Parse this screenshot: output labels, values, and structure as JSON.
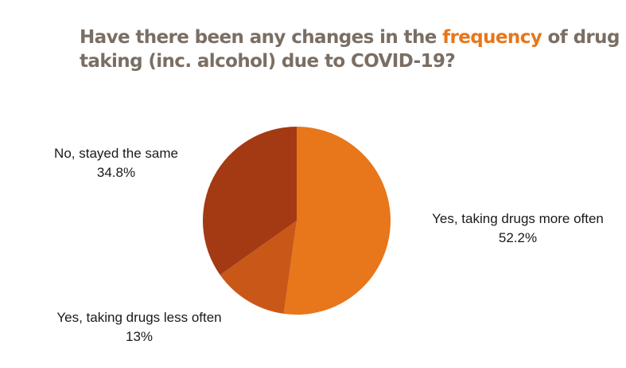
{
  "title": {
    "before": "Have there been any changes in the ",
    "highlight": "frequency",
    "after": " of drug taking (inc. alcohol) due to COVID-19?"
  },
  "colors": {
    "title": "#7a6e64",
    "highlight": "#e8761a"
  },
  "chart_data": {
    "type": "pie",
    "slices": [
      {
        "label": "Yes, taking drugs more often",
        "value": 52.2,
        "value_label": "52.2%",
        "color": "#e8761a"
      },
      {
        "label": "Yes, taking drugs less often",
        "value": 13,
        "value_label": "13%",
        "color": "#c95818"
      },
      {
        "label": "No, stayed the same",
        "value": 34.8,
        "value_label": "34.8%",
        "color": "#a33a14"
      }
    ],
    "start": "12 o'clock",
    "direction": "clockwise",
    "legend": "none",
    "labels": "outside"
  }
}
